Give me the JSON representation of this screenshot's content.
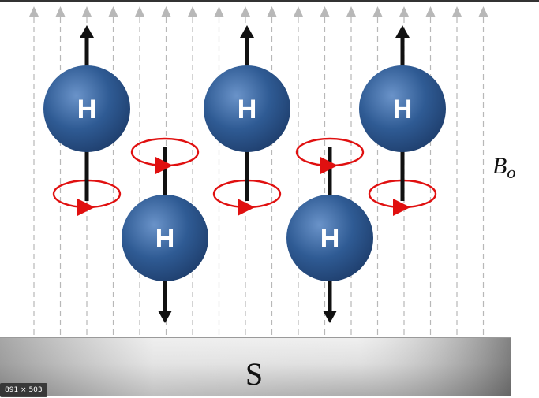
{
  "diagram": {
    "field_label_main": "B",
    "field_label_sub": "o",
    "magnet_label": "S",
    "atom_label": "H",
    "colors": {
      "atom_fill": "#2f5b94",
      "atom_highlight": "#5b86c0",
      "field_lines": "#b8b8b8",
      "precession": "#e01010",
      "axis": "#111111",
      "magnet_light": "#f0f0f0",
      "magnet_dark": "#7a7a7a"
    },
    "atoms": [
      {
        "spin": "up"
      },
      {
        "spin": "down"
      },
      {
        "spin": "up"
      },
      {
        "spin": "down"
      },
      {
        "spin": "up"
      }
    ]
  },
  "viewer": {
    "dimension_badge": "891 × 503"
  }
}
